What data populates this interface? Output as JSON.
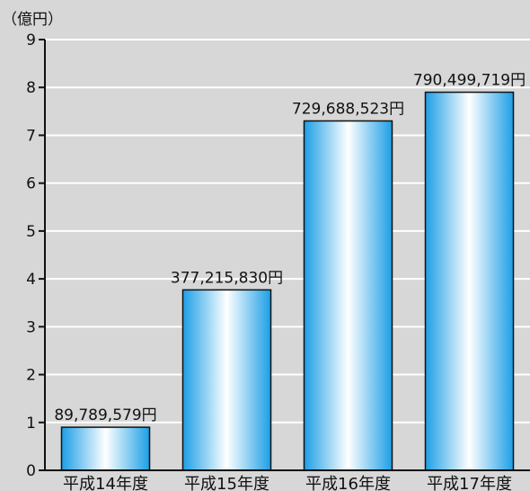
{
  "chart_data": {
    "type": "bar",
    "unit_label": "（億円）",
    "categories": [
      "平成14年度",
      "平成15年度",
      "平成16年度",
      "平成17年度"
    ],
    "values": [
      0.9,
      3.77,
      7.3,
      7.9
    ],
    "data_labels": [
      "89,789,579円",
      "377,215,830円",
      "729,688,523円",
      "790,499,719円"
    ],
    "ylim": [
      0,
      9
    ],
    "yticks": [
      "0",
      "1",
      "2",
      "3",
      "4",
      "5",
      "6",
      "7",
      "8",
      "9"
    ],
    "grid": true,
    "bar_color": "#22aaee"
  }
}
